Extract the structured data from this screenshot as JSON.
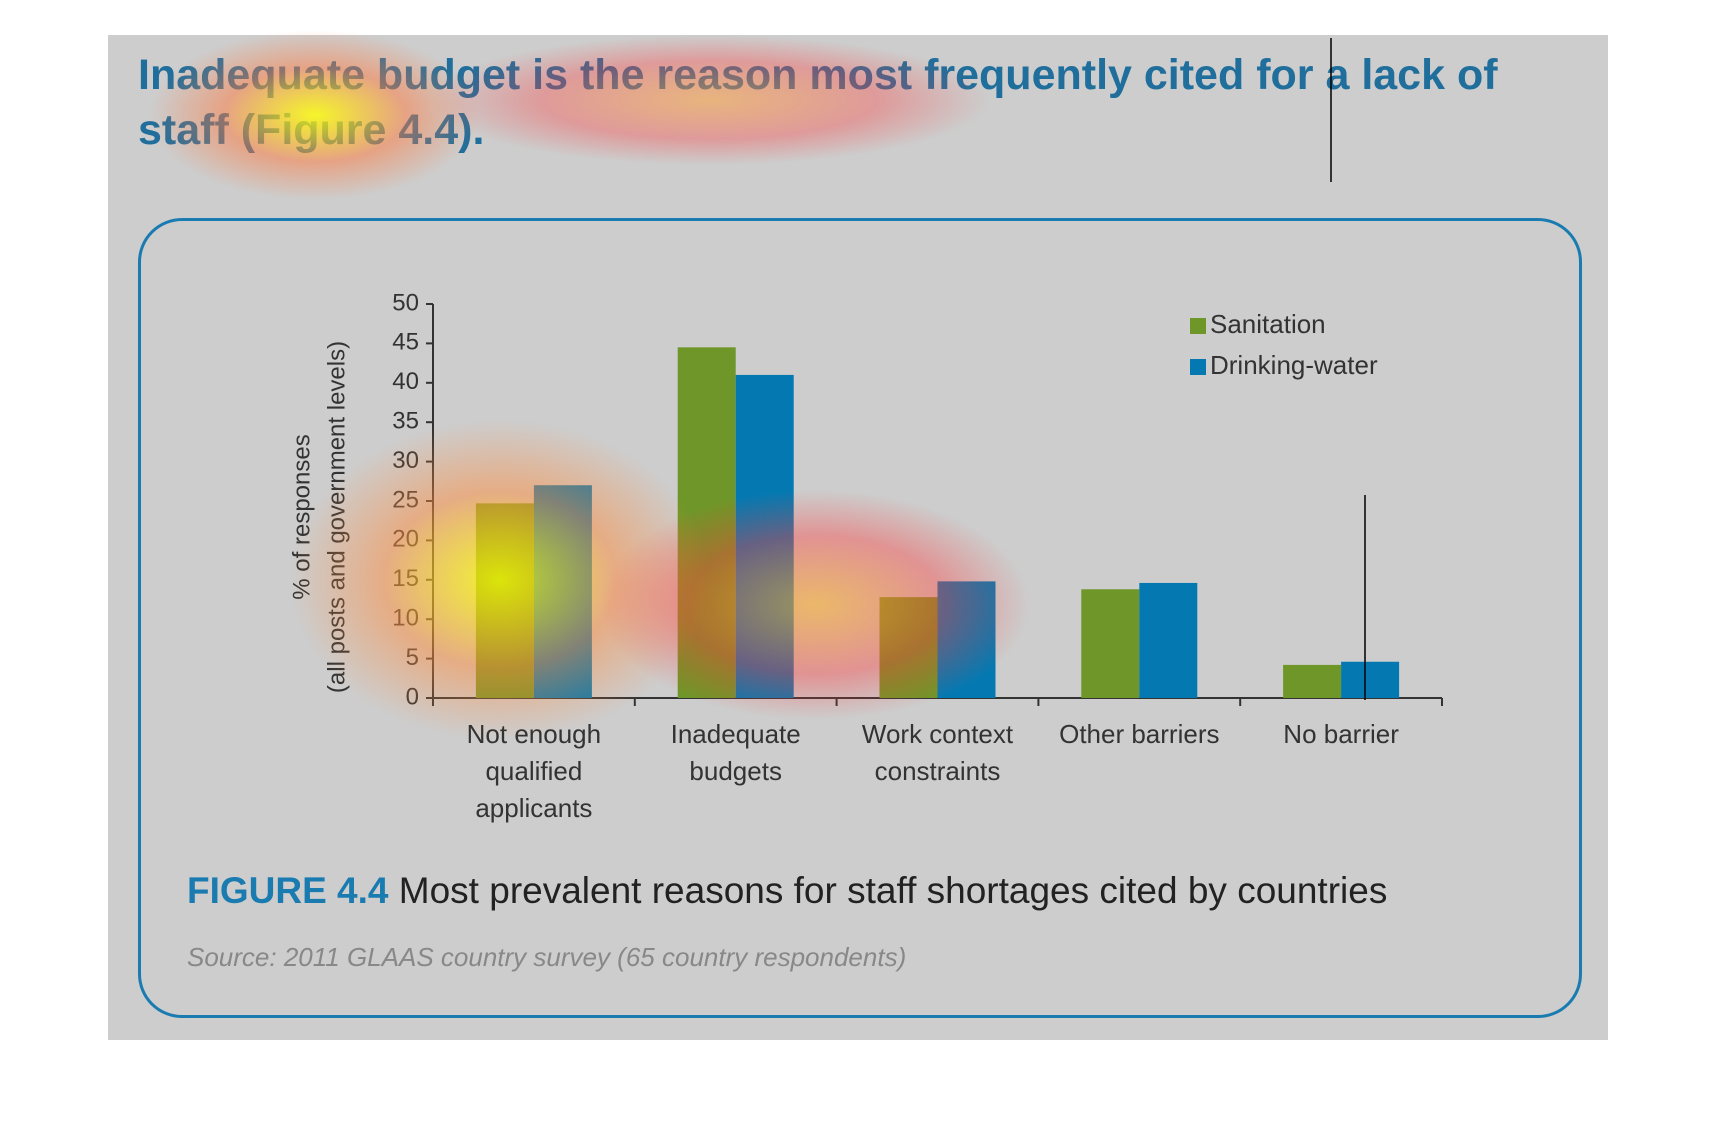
{
  "header": {
    "title": "Inadequate budget is the reason most frequently cited for a lack of staff (Figure 4.4)."
  },
  "chart_data": {
    "type": "bar",
    "ylabel": [
      "% of responses",
      "(all posts and government levels)"
    ],
    "categories": [
      "Not enough qualified applicants",
      "Inadequate budgets",
      "Work context constraints",
      "Other barriers",
      "No barrier"
    ],
    "series": [
      {
        "name": "Sanitation",
        "color": "#6f9628",
        "values": [
          24.7,
          44.5,
          12.8,
          13.8,
          4.2
        ]
      },
      {
        "name": "Drinking-water",
        "color": "#0479b1",
        "values": [
          27,
          41,
          14.8,
          14.6,
          4.6
        ]
      }
    ],
    "ylim": [
      0,
      50
    ],
    "yticks": [
      0,
      5,
      10,
      15,
      20,
      25,
      30,
      35,
      40,
      45,
      50
    ],
    "legend": "upper right"
  },
  "caption": {
    "label": "FIGURE 4.4",
    "text": "Most prevalent reasons for staff shortages cited by countries",
    "source": "Source: 2011 GLAAS country survey (65 country respondents)"
  }
}
